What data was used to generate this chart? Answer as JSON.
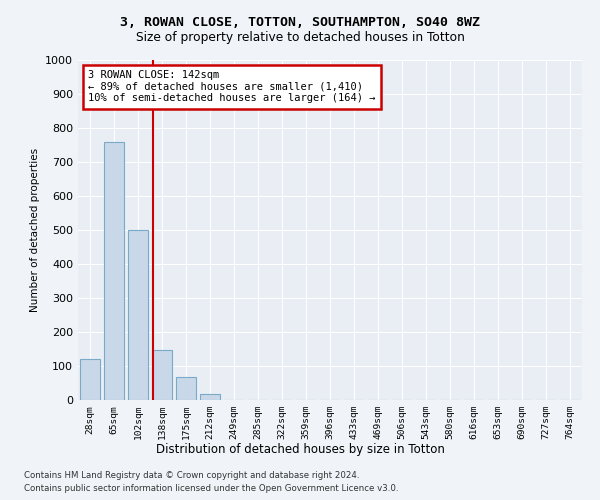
{
  "title1": "3, ROWAN CLOSE, TOTTON, SOUTHAMPTON, SO40 8WZ",
  "title2": "Size of property relative to detached houses in Totton",
  "xlabel": "Distribution of detached houses by size in Totton",
  "ylabel": "Number of detached properties",
  "footnote1": "Contains HM Land Registry data © Crown copyright and database right 2024.",
  "footnote2": "Contains public sector information licensed under the Open Government Licence v3.0.",
  "bin_labels": [
    "28sqm",
    "65sqm",
    "102sqm",
    "138sqm",
    "175sqm",
    "212sqm",
    "249sqm",
    "285sqm",
    "322sqm",
    "359sqm",
    "396sqm",
    "433sqm",
    "469sqm",
    "506sqm",
    "543sqm",
    "580sqm",
    "616sqm",
    "653sqm",
    "690sqm",
    "727sqm",
    "764sqm"
  ],
  "bar_heights": [
    120,
    760,
    500,
    148,
    68,
    18,
    0,
    0,
    0,
    0,
    0,
    0,
    0,
    0,
    0,
    0,
    0,
    0,
    0,
    0,
    0
  ],
  "bar_color": "#c8d8e8",
  "bar_edge_color": "#7aaac8",
  "annotation_line1": "3 ROWAN CLOSE: 142sqm",
  "annotation_line2": "← 89% of detached houses are smaller (1,410)",
  "annotation_line3": "10% of semi-detached houses are larger (164) →",
  "annotation_box_color": "#ffffff",
  "annotation_box_edge": "#cc0000",
  "vline_color": "#cc0000",
  "vline_x_index": 2.62,
  "ylim": [
    0,
    1000
  ],
  "yticks": [
    0,
    100,
    200,
    300,
    400,
    500,
    600,
    700,
    800,
    900,
    1000
  ],
  "plot_bg_color": "#e8eef4",
  "fig_bg_color": "#f0f4f8"
}
